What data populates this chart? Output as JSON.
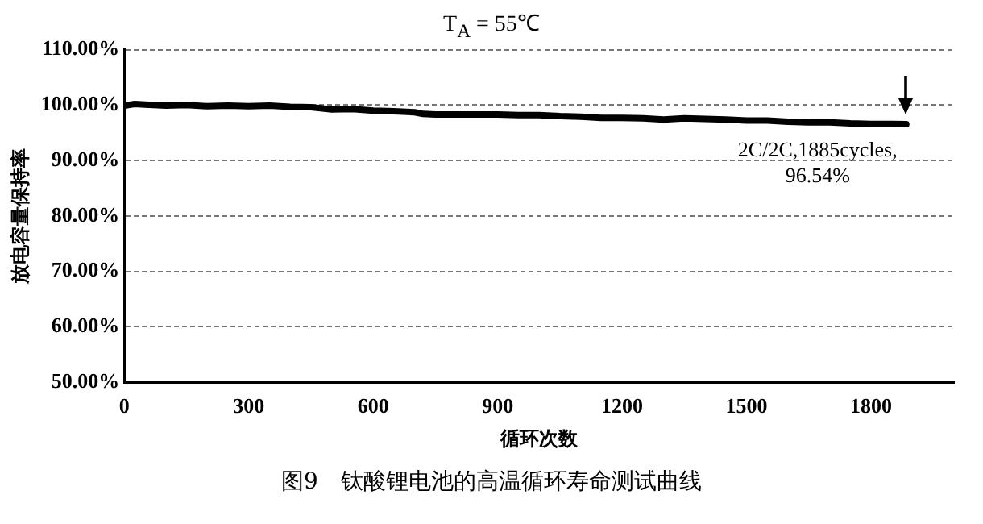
{
  "chart_data": {
    "type": "line",
    "title": "T$_{A}$ = 55℃",
    "xlabel": "循环次数",
    "ylabel": "放电容量保持率",
    "x": [
      0,
      25,
      50,
      100,
      150,
      200,
      250,
      300,
      350,
      400,
      450,
      500,
      550,
      600,
      650,
      700,
      720,
      750,
      800,
      850,
      900,
      950,
      1000,
      1050,
      1100,
      1150,
      1200,
      1250,
      1300,
      1350,
      1400,
      1450,
      1500,
      1550,
      1600,
      1650,
      1700,
      1750,
      1800,
      1850,
      1885
    ],
    "series": [
      {
        "color": "#000000",
        "values": [
          99.9,
          100.2,
          100.1,
          99.9,
          100.0,
          99.8,
          99.9,
          99.8,
          99.9,
          99.7,
          99.6,
          99.2,
          99.3,
          99.0,
          98.9,
          98.7,
          98.4,
          98.3,
          98.3,
          98.3,
          98.3,
          98.2,
          98.2,
          98.0,
          97.9,
          97.7,
          97.7,
          97.6,
          97.4,
          97.6,
          97.5,
          97.4,
          97.2,
          97.2,
          97.0,
          96.9,
          96.9,
          96.7,
          96.6,
          96.6,
          96.54
        ]
      }
    ],
    "xlim": [
      0,
      2000
    ],
    "xticks": [
      0,
      300,
      600,
      900,
      1200,
      1500,
      1800
    ],
    "ylim": [
      50,
      110
    ],
    "yticks": [
      {
        "value": 50,
        "label": "50.00%"
      },
      {
        "value": 60,
        "label": "60.00%"
      },
      {
        "value": 70,
        "label": "70.00%"
      },
      {
        "value": 80,
        "label": "80.00%"
      },
      {
        "value": 90,
        "label": "90.00%"
      },
      {
        "value": 100,
        "label": "100.00%"
      },
      {
        "value": 110,
        "label": "110.00%"
      }
    ],
    "grid": "y",
    "legend": false,
    "marker": "none",
    "line_style": "solid",
    "annotations": [
      {
        "text": "2C/2C,1885cycles,\n96.54%",
        "x": 1885,
        "y": 96.54
      },
      "图9　钛酸锂电池的高温循环寿命测试曲线"
    ]
  }
}
